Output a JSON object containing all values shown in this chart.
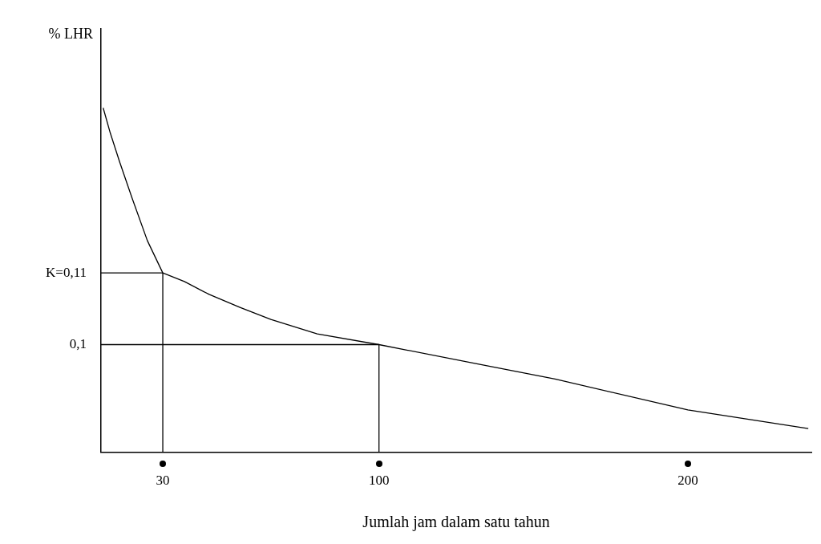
{
  "chart_data": {
    "type": "line",
    "xlabel": "Jumlah jam dalam satu tahun",
    "ylabel": "% LHR",
    "xlim": [
      10,
      240
    ],
    "ylim": [
      0.085,
      0.144
    ],
    "xticks": [
      30,
      100,
      200
    ],
    "yticks": [
      {
        "value": 0.11,
        "label": "K=0,11"
      },
      {
        "value": 0.1,
        "label": "0,1"
      }
    ],
    "series": [
      {
        "color": "#000000",
        "x": [
          10.7,
          13,
          16,
          20,
          25,
          30,
          37,
          45,
          55,
          65,
          80,
          100,
          132,
          157,
          200,
          239
        ],
        "values": [
          0.133,
          0.1295,
          0.1255,
          0.1205,
          0.1145,
          0.11,
          0.1088,
          0.107,
          0.1052,
          0.1035,
          0.1015,
          0.1,
          0.0973,
          0.0952,
          0.0909,
          0.0883
        ]
      },
      {
        "color": "#000000",
        "x": [
          10,
          30,
          30
        ],
        "values": [
          0.11,
          0.11,
          0.085
        ]
      },
      {
        "color": "#000000",
        "x": [
          10,
          100,
          100
        ],
        "values": [
          0.1,
          0.1,
          0.085
        ]
      }
    ],
    "grid": false,
    "legend": false,
    "marker": "none",
    "line_style": "solid"
  }
}
